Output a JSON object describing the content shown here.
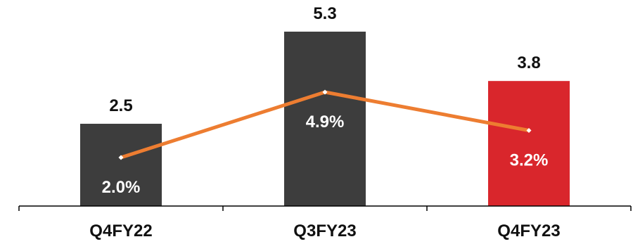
{
  "chart_data": {
    "type": "bar",
    "categories": [
      "Q4FY22",
      "Q3FY23",
      "Q4FY23"
    ],
    "series": [
      {
        "type": "bar",
        "values": [
          2.5,
          5.3,
          3.8
        ],
        "labels": [
          "2.5",
          "5.3",
          "3.8"
        ]
      },
      {
        "type": "line",
        "values": [
          2.0,
          4.9,
          3.2
        ],
        "labels": [
          "2.0%",
          "4.9%",
          "3.2%"
        ]
      }
    ],
    "colors": {
      "bar_default": "#3d3d3d",
      "bar_highlight": "#d9262c",
      "line": "#ed7d31",
      "marker": "#ffffff"
    },
    "highlight_index": 2,
    "title": "",
    "xlabel": "",
    "ylabel": "",
    "grid": false,
    "legend": "none"
  }
}
